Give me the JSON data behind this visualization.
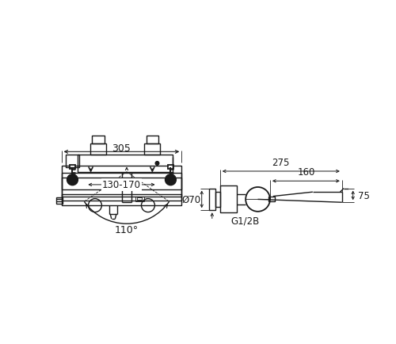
{
  "bg_color": "#ffffff",
  "line_color": "#1a1a1a",
  "lw": 1.0,
  "lw_thin": 0.6,
  "font_size": 8.5,
  "font_size_sm": 7.5
}
